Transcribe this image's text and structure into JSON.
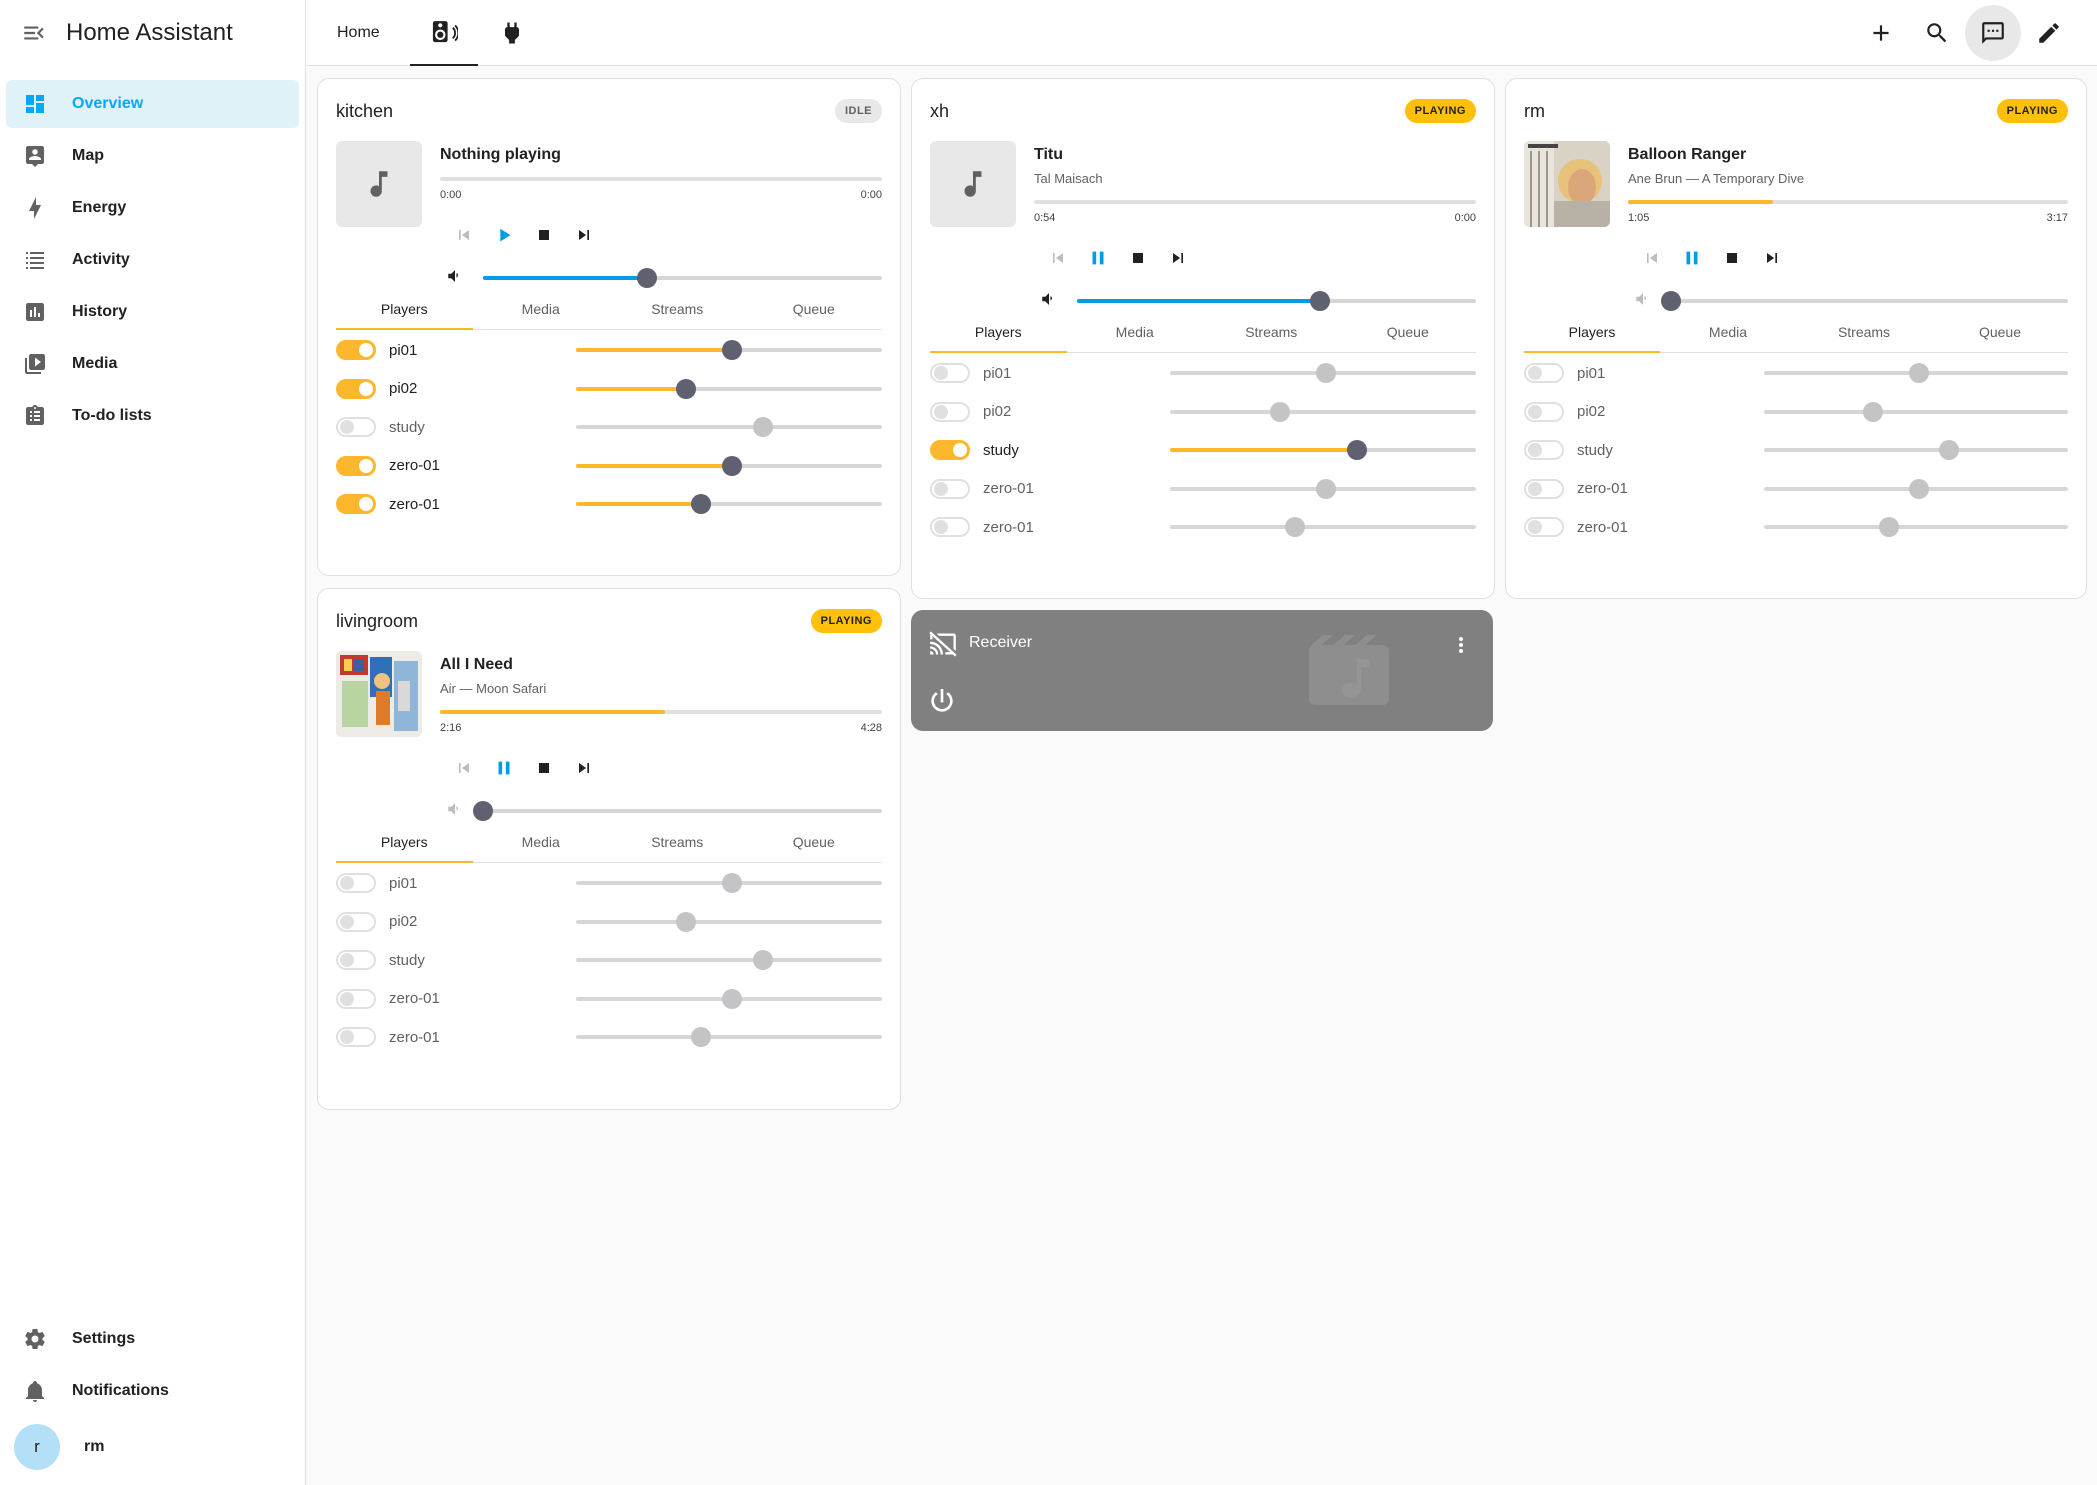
{
  "app": {
    "title": "Home Assistant"
  },
  "sidebar": {
    "items": [
      {
        "label": "Overview",
        "icon": "dashboard-icon",
        "active": true
      },
      {
        "label": "Map",
        "icon": "map-icon"
      },
      {
        "label": "Energy",
        "icon": "energy-icon"
      },
      {
        "label": "Activity",
        "icon": "activity-icon"
      },
      {
        "label": "History",
        "icon": "history-icon"
      },
      {
        "label": "Media",
        "icon": "media-icon"
      },
      {
        "label": "To-do lists",
        "icon": "todo-icon"
      }
    ],
    "bottom": [
      {
        "label": "Settings",
        "icon": "gear-icon"
      },
      {
        "label": "Notifications",
        "icon": "bell-icon"
      }
    ],
    "user": {
      "initial": "r",
      "name": "rm"
    }
  },
  "topbar": {
    "tabs": [
      {
        "label": "Home"
      },
      {
        "icon": "speaker-icon",
        "active": true
      },
      {
        "icon": "plug-icon"
      }
    ],
    "actions": [
      "add-icon",
      "search-icon",
      "assist-icon",
      "edit-icon"
    ]
  },
  "colors": {
    "accent": "#03a9f4",
    "playing": "#fdb72c",
    "slider_blue": "#039be5"
  },
  "subtabs": [
    "Players",
    "Media",
    "Streams",
    "Queue"
  ],
  "cards": {
    "kitchen": {
      "name": "kitchen",
      "state": "IDLE",
      "track": "Nothing playing",
      "artist": "",
      "elapsed": "0:00",
      "duration": "0:00",
      "progress": 0.0,
      "volume": 0.41,
      "players": [
        {
          "name": "pi01",
          "on": true,
          "volume": 0.51
        },
        {
          "name": "pi02",
          "on": true,
          "volume": 0.36
        },
        {
          "name": "study",
          "on": false,
          "volume": 0.61
        },
        {
          "name": "zero-01",
          "on": true,
          "volume": 0.51
        },
        {
          "name": "zero-01",
          "on": true,
          "volume": 0.41
        }
      ]
    },
    "xh": {
      "name": "xh",
      "state": "PLAYING",
      "track": "Titu",
      "artist": "Tal Maisach",
      "elapsed": "0:54",
      "duration": "0:00",
      "progress": 0.0,
      "volume": 0.61,
      "players": [
        {
          "name": "pi01",
          "on": false,
          "volume": 0.51
        },
        {
          "name": "pi02",
          "on": false,
          "volume": 0.36
        },
        {
          "name": "study",
          "on": true,
          "volume": 0.61
        },
        {
          "name": "zero-01",
          "on": false,
          "volume": 0.51
        },
        {
          "name": "zero-01",
          "on": false,
          "volume": 0.41
        }
      ]
    },
    "rm": {
      "name": "rm",
      "state": "PLAYING",
      "track": "Balloon Ranger",
      "artist": "Ane Brun — A Temporary Dive",
      "elapsed": "1:05",
      "duration": "3:17",
      "progress": 0.33,
      "volume": 0.0,
      "players": [
        {
          "name": "pi01",
          "on": false,
          "volume": 0.51
        },
        {
          "name": "pi02",
          "on": false,
          "volume": 0.36
        },
        {
          "name": "study",
          "on": false,
          "volume": 0.61
        },
        {
          "name": "zero-01",
          "on": false,
          "volume": 0.51
        },
        {
          "name": "zero-01",
          "on": false,
          "volume": 0.41
        }
      ]
    },
    "livingroom": {
      "name": "livingroom",
      "state": "PLAYING",
      "track": "All I Need",
      "artist": "Air — Moon Safari",
      "elapsed": "2:16",
      "duration": "4:28",
      "progress": 0.51,
      "volume": 0.0,
      "players": [
        {
          "name": "pi01",
          "on": false,
          "volume": 0.51
        },
        {
          "name": "pi02",
          "on": false,
          "volume": 0.36
        },
        {
          "name": "study",
          "on": false,
          "volume": 0.61
        },
        {
          "name": "zero-01",
          "on": false,
          "volume": 0.51
        },
        {
          "name": "zero-01",
          "on": false,
          "volume": 0.41
        }
      ]
    }
  },
  "receiver": {
    "name": "Receiver"
  }
}
